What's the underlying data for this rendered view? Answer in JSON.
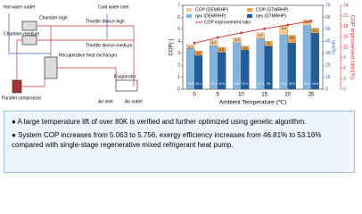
{
  "diagram": {
    "labels": [
      "Hot water outlet",
      "Cold water inlet",
      "Chamber-high",
      "Chamber-medium",
      "Throttle device-high",
      "Throttle device-medium",
      "Recuperative heat exchanger",
      "Parallel compressor",
      "Evaporator",
      "Air inlet",
      "Air outlet"
    ]
  },
  "chart_data": {
    "type": "bar",
    "x_label": "Ambient Temperature (℃)",
    "y_label": "COP(-)",
    "y2_label": "ηex(%)",
    "y3_label": "COP improvement ratio(%)",
    "categories": [
      "0",
      "5",
      "10",
      "15",
      "20",
      "25"
    ],
    "ylim": [
      0,
      7
    ],
    "yticks": [
      0,
      1,
      2,
      3,
      4,
      5,
      6,
      7
    ],
    "y2lim": [
      0,
      70
    ],
    "y2ticks": [
      0,
      10,
      20,
      30,
      40,
      50,
      60,
      70
    ],
    "y3lim": [
      0,
      24
    ],
    "y3ticks": [
      0,
      3,
      6,
      9,
      12,
      15,
      18,
      21,
      24
    ],
    "series": [
      {
        "name": "COP (DEMRHP)",
        "color": "#f6c98e",
        "values": [
          3.7,
          4.1,
          4.3,
          4.7,
          5.3,
          5.8
        ],
        "axis": "y",
        "group": 0
      },
      {
        "name": "COP (STMRHP)",
        "color": "#f0a04b",
        "values": [
          3.2,
          3.5,
          3.6,
          4.0,
          4.5,
          5.1
        ],
        "axis": "y",
        "group": 1
      },
      {
        "name": "ηex (DEMRHP)",
        "color": "#7fb3e0",
        "values": [
          33.8,
          36.2,
          38.8,
          42.3,
          45.1,
          53.2
        ],
        "axis": "y2",
        "group": 0
      },
      {
        "name": "ηex (STMRHP)",
        "color": "#1f5d9c",
        "values": [
          28.1,
          30.8,
          32.6,
          36.0,
          38.5,
          46.8
        ],
        "axis": "y2",
        "group": 1
      },
      {
        "name": "COP improvement ratio",
        "color": "#e03030",
        "values": [
          13.2,
          14.8,
          16.1,
          17.3,
          18.4,
          19.5
        ],
        "axis": "y3",
        "kind": "line"
      }
    ]
  },
  "text_box": {
    "bullets": [
      "A large temperature lift of over 80K is verified and further optimized using genetic algorithm.",
      "System COP increases from 5.063 to 5.756, exergy efficiency increases from 46.81% to 53.16% compared with single-stage regenerative mixed refrigerant heat pump."
    ]
  }
}
